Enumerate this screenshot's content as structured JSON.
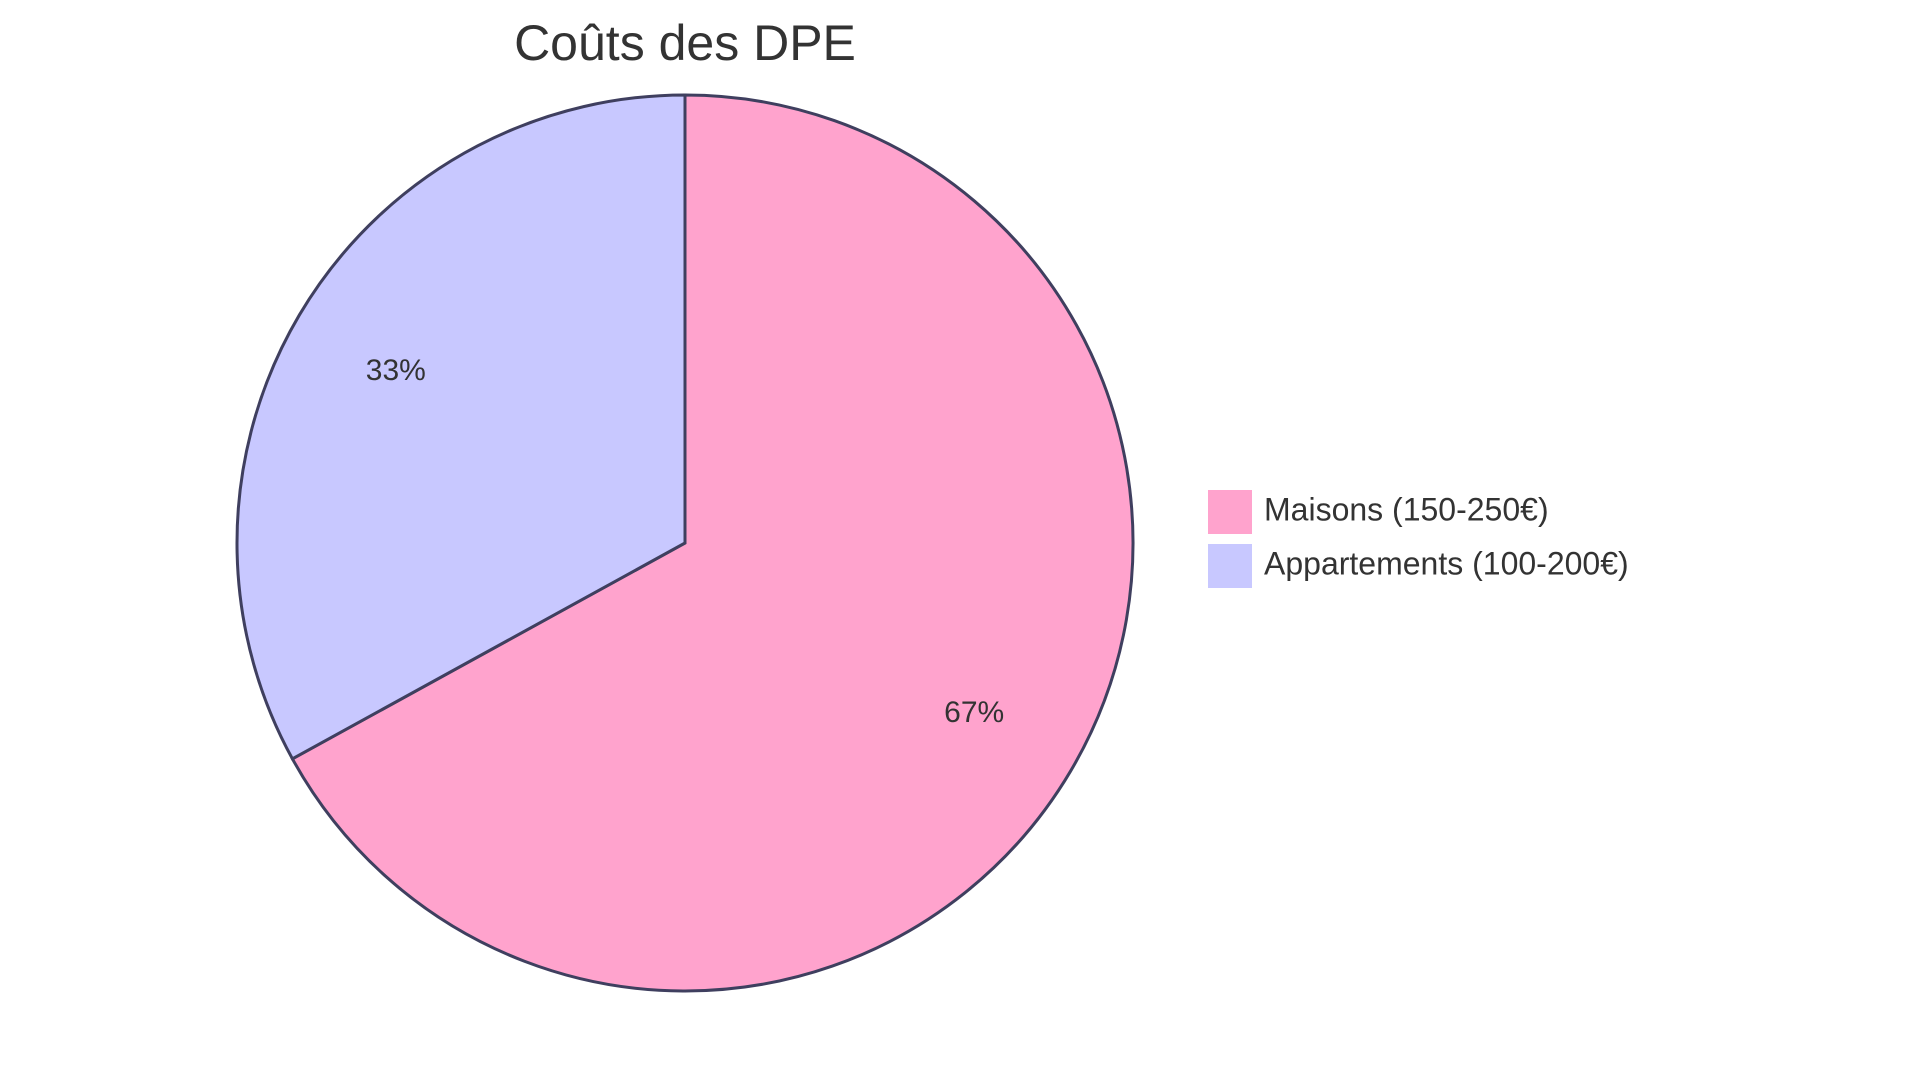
{
  "chart_data": {
    "type": "pie",
    "title": "Coûts des DPE",
    "slices": [
      {
        "name": "Maisons (150-250€)",
        "value": 67,
        "label": "67%",
        "color": "#FFA3CD"
      },
      {
        "name": "Appartements (100-200€)",
        "value": 33,
        "label": "33%",
        "color": "#C8C8FF"
      }
    ],
    "stroke_color": "#3F3F5F",
    "legend_position": "right"
  }
}
